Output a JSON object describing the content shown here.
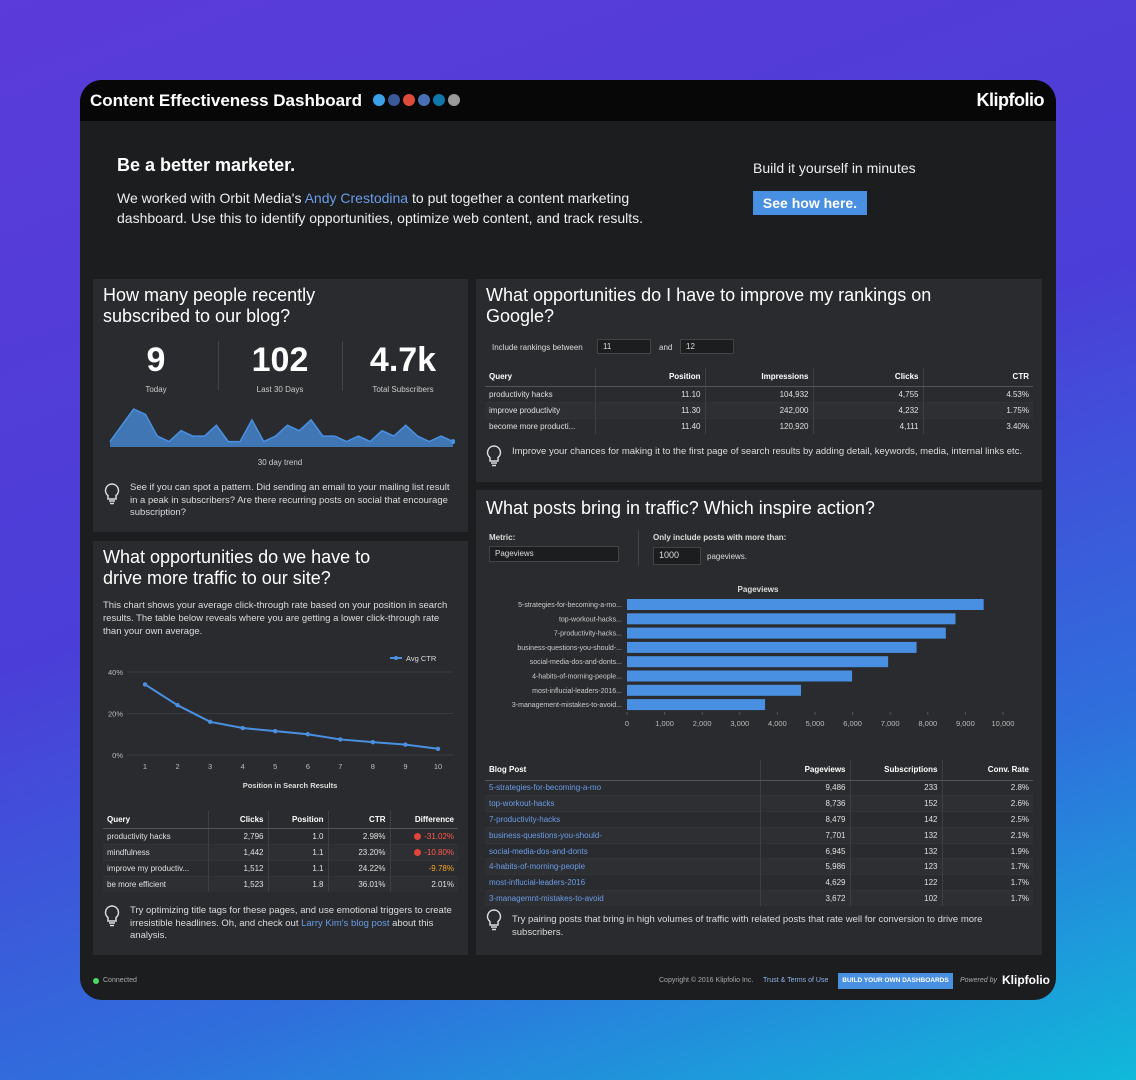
{
  "header": {
    "title": "Content Effectiveness Dashboard",
    "brand": "Klipfolio"
  },
  "intro": {
    "heading": "Be a better marketer.",
    "text_before": "We worked with Orbit Media's ",
    "link": "Andy Crestodina",
    "text_after": " to put together a content marketing dashboard. Use this to identify opportunities, optimize web content, and track results.",
    "cta_text": "Build it yourself in minutes",
    "cta_button": "See how here."
  },
  "subscribers": {
    "title": "How many people recently subscribed to our blog?",
    "stats": [
      {
        "value": 9,
        "label": "Today"
      },
      {
        "value": 102,
        "label": "Last 30 Days"
      },
      {
        "value": "4.7k",
        "label": "Total Subscribers"
      }
    ],
    "trend": {
      "type": "line",
      "label": "30 day trend",
      "color": "#4a90e2",
      "values": [
        1,
        4,
        7,
        6,
        2,
        1,
        3,
        2,
        2,
        4,
        1,
        1,
        5,
        1,
        2,
        4,
        3,
        5,
        2,
        2,
        1,
        2,
        1,
        3,
        2,
        4,
        2,
        1,
        2,
        1
      ]
    },
    "tip": "See if you can spot a pattern. Did sending an email to your mailing list result in a peak in subscribers? Are there recurring posts on social that encourage subscription?"
  },
  "traffic": {
    "title": "What opportunities do we have to drive more traffic to our site?",
    "description": "This chart shows your average click-through rate based on your position in search results. The table below reveals where you are getting a lower click-through rate than your own average.",
    "chart": {
      "type": "line",
      "categories": [
        "1",
        "2",
        "3",
        "4",
        "5",
        "6",
        "7",
        "8",
        "9",
        "10"
      ],
      "series": [
        {
          "name": "Avg CTR",
          "color": "#4a90e2",
          "values": [
            34,
            24,
            16,
            13,
            11.5,
            10,
            7.5,
            6.2,
            5,
            3
          ]
        }
      ],
      "ylim": [
        0,
        40
      ],
      "yticks": [
        {
          "value": 0,
          "label": "0%"
        },
        {
          "value": 20,
          "label": "20%"
        },
        {
          "value": 40,
          "label": "40%"
        }
      ],
      "xlabel": "Position in Search Results",
      "legend": "top-right"
    },
    "table": {
      "columns": [
        "Query",
        "Clicks",
        "Position",
        "CTR",
        "Difference"
      ],
      "rows": [
        [
          "productivity hacks",
          "2,796",
          "1.0",
          "2.98%",
          "-31.02%"
        ],
        [
          "mindfulness",
          "1,442",
          "1.1",
          "23.20%",
          "-10.80%"
        ],
        [
          "improve my productiv...",
          "1,512",
          "1.1",
          "24.22%",
          "-9.78%"
        ],
        [
          "be more efficient",
          "1,523",
          "1.8",
          "36.01%",
          "2.01%"
        ]
      ]
    },
    "tip_before": "Try optimizing title tags for these pages, and use emotional triggers to create irresistible headlines. Oh, and check out ",
    "tip_link": "Larry Kim's blog post",
    "tip_after": " about this analysis."
  },
  "rankings": {
    "title": "What opportunities do I have to improve my rankings on Google?",
    "filter_label": "Include rankings between",
    "from": "11",
    "and": "and",
    "to": "12",
    "table": {
      "columns": [
        "Query",
        "Position",
        "Impressions",
        "Clicks",
        "CTR"
      ],
      "rows": [
        [
          "productivity hacks",
          "11.10",
          "104,932",
          "4,755",
          "4.53%"
        ],
        [
          "improve productivity",
          "11.30",
          "242,000",
          "4,232",
          "1.75%"
        ],
        [
          "become more producti...",
          "11.40",
          "120,920",
          "4,111",
          "3.40%"
        ]
      ]
    },
    "tip": "Improve your chances for making it to the first page of search results by adding detail, keywords, media, internal links etc."
  },
  "posts": {
    "title": "What posts bring in traffic? Which inspire action?",
    "metric_label": "Metric:",
    "metric": "Pageviews",
    "min_label": "Only include posts with more than:",
    "min_value": "1000",
    "min_unit": "pageviews.",
    "chart": {
      "type": "bar",
      "orientation": "horizontal",
      "title": "Pageviews",
      "color": "#4a90e2",
      "categories": [
        "5-strategies-for-becoming-a-mo...",
        "top-workout-hacks...",
        "7-productivity-hacks...",
        "business-questions-you-should-...",
        "social-media-dos-and-donts...",
        "4-habits-of-morning-people...",
        "most-influcial-leaders-2016...",
        "3-management-mistakes-to-avoid..."
      ],
      "values": [
        9486,
        8736,
        8479,
        7701,
        6945,
        5986,
        4629,
        3672
      ],
      "xlim": [
        0,
        10000
      ],
      "xticks": [
        0,
        {
          "value": 1000,
          "label": "1,000"
        },
        {
          "value": 2000,
          "label": "2,000"
        },
        {
          "value": 3000,
          "label": "3,000"
        },
        {
          "value": 4000,
          "label": "4,000"
        },
        {
          "value": 5000,
          "label": "5,000"
        },
        {
          "value": 6000,
          "label": "6,000"
        },
        {
          "value": 7000,
          "label": "7,000"
        },
        {
          "value": 8000,
          "label": "8,000"
        },
        {
          "value": 9000,
          "label": "9,000"
        },
        {
          "value": 10000,
          "label": "10,000"
        }
      ]
    },
    "table": {
      "columns": [
        "Blog Post",
        "Pageviews",
        "Subscriptions",
        "Conv. Rate"
      ],
      "rows": [
        [
          "5-strategies-for-becoming-a-mo",
          "9,486",
          "233",
          "2.8%"
        ],
        [
          "top-workout-hacks",
          "8,736",
          "152",
          "2.6%"
        ],
        [
          "7-productivity-hacks",
          "8,479",
          "142",
          "2.5%"
        ],
        [
          "business-questions-you-should-",
          "7,701",
          "132",
          "2.1%"
        ],
        [
          "social-media-dos-and-donts",
          "6,945",
          "132",
          "1.9%"
        ],
        [
          "4-habits-of-morning-people",
          "5,986",
          "123",
          "1.7%"
        ],
        [
          "most-influcial-leaders-2016",
          "4,629",
          "122",
          "1.7%"
        ],
        [
          "3-managemnt-mistakes-to-avoid",
          "3,672",
          "102",
          "1.7%"
        ]
      ]
    },
    "tip": "Try pairing posts that bring in high volumes of traffic with related posts that rate well for conversion to drive more subscribers."
  },
  "footer": {
    "status": "Connected",
    "copyright": "Copyright © 2016 Klipfolio Inc.",
    "terms": "Trust & Terms of Use",
    "button": "BUILD YOUR OWN DASHBOARDS",
    "powered_by": "Powered by",
    "brand": "Klipfolio"
  }
}
